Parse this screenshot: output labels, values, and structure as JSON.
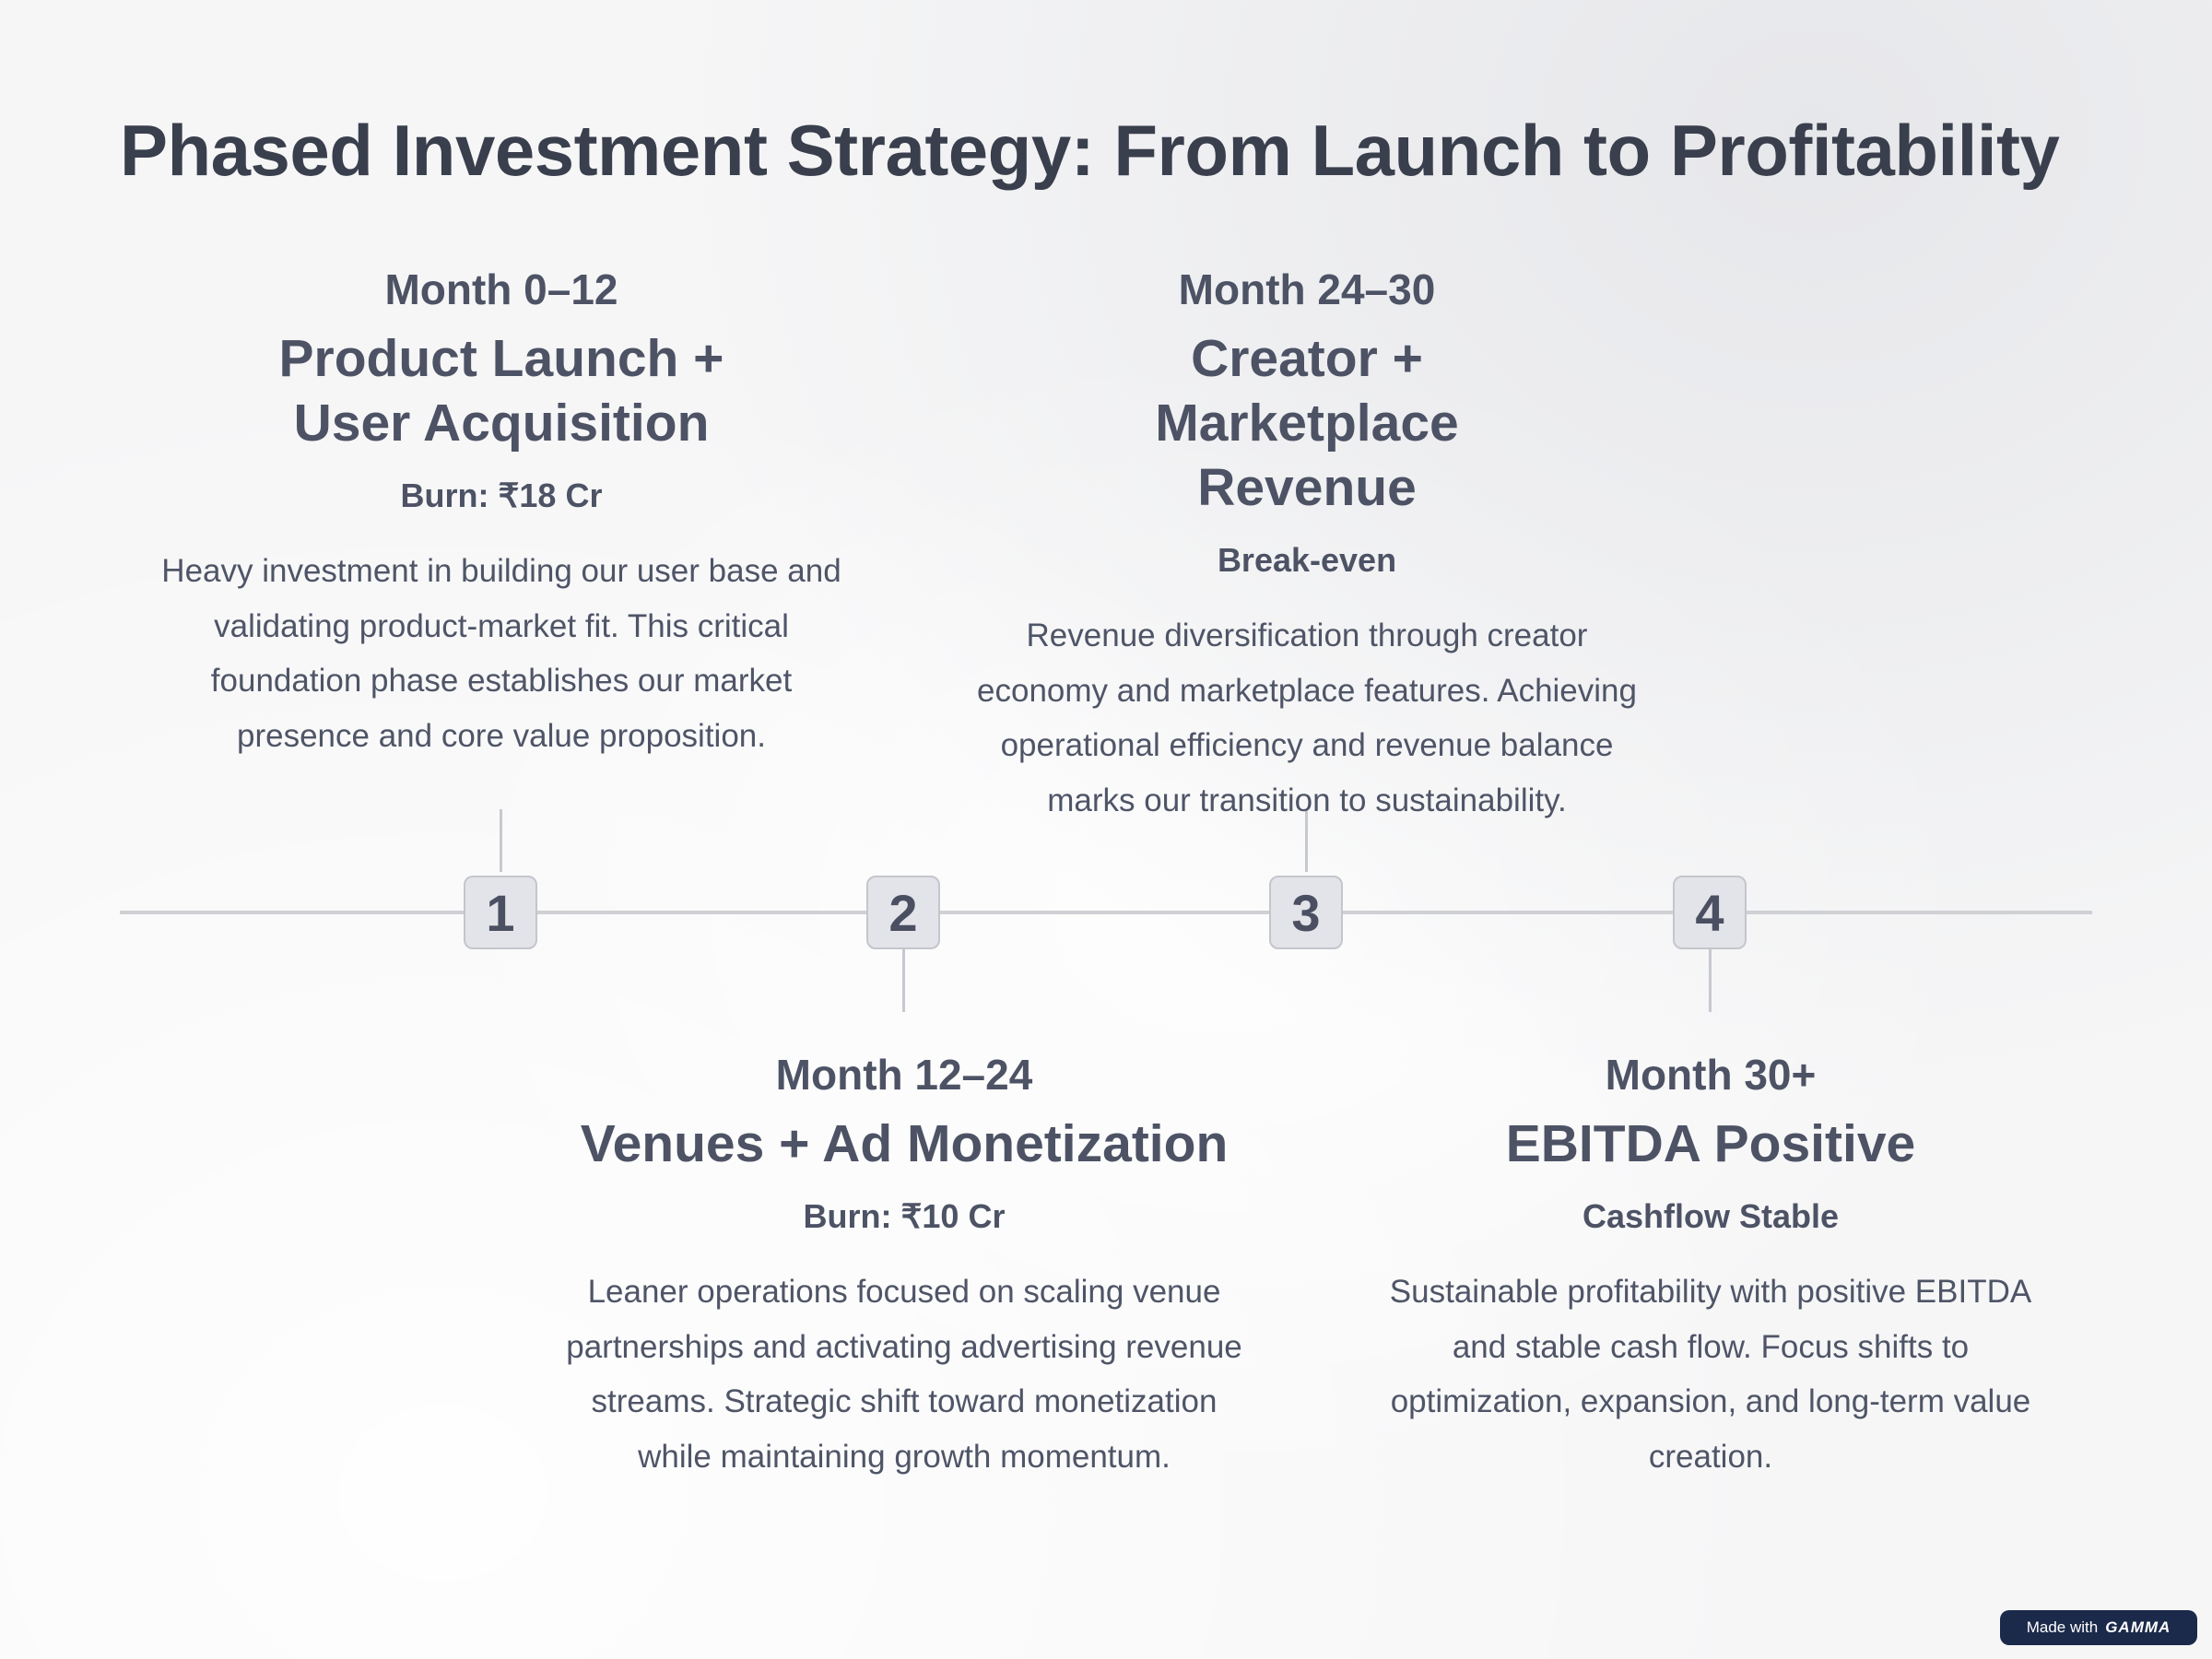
{
  "slide": {
    "title": "Phased Investment Strategy: From Launch to Profitability"
  },
  "phases": [
    {
      "number": "1",
      "period": "Month 0–12",
      "title": "Product Launch + User Acquisition",
      "metric": "Burn: ₹18 Cr",
      "description": "Heavy investment in building our user base and validating product-market fit. This critical foundation phase establishes our market presence and core value proposition."
    },
    {
      "number": "2",
      "period": "Month 12–24",
      "title": "Venues + Ad Monetization",
      "metric": "Burn: ₹10 Cr",
      "description": "Leaner operations focused on scaling venue partnerships and activating advertising revenue streams. Strategic shift toward monetization while maintaining growth momentum."
    },
    {
      "number": "3",
      "period": "Month 24–30",
      "title": "Creator + Marketplace Revenue",
      "metric": "Break-even",
      "description": "Revenue diversification through creator economy and marketplace features. Achieving operational efficiency and revenue balance marks our transition to sustainability."
    },
    {
      "number": "4",
      "period": "Month 30+",
      "title": "EBITDA Positive",
      "metric": "Cashflow Stable",
      "description": "Sustainable profitability with positive EBITDA and stable cash flow. Focus shifts to optimization, expansion, and long-term value creation."
    }
  ],
  "badge": {
    "prefix": "Made with",
    "brand": "GAMMA"
  }
}
